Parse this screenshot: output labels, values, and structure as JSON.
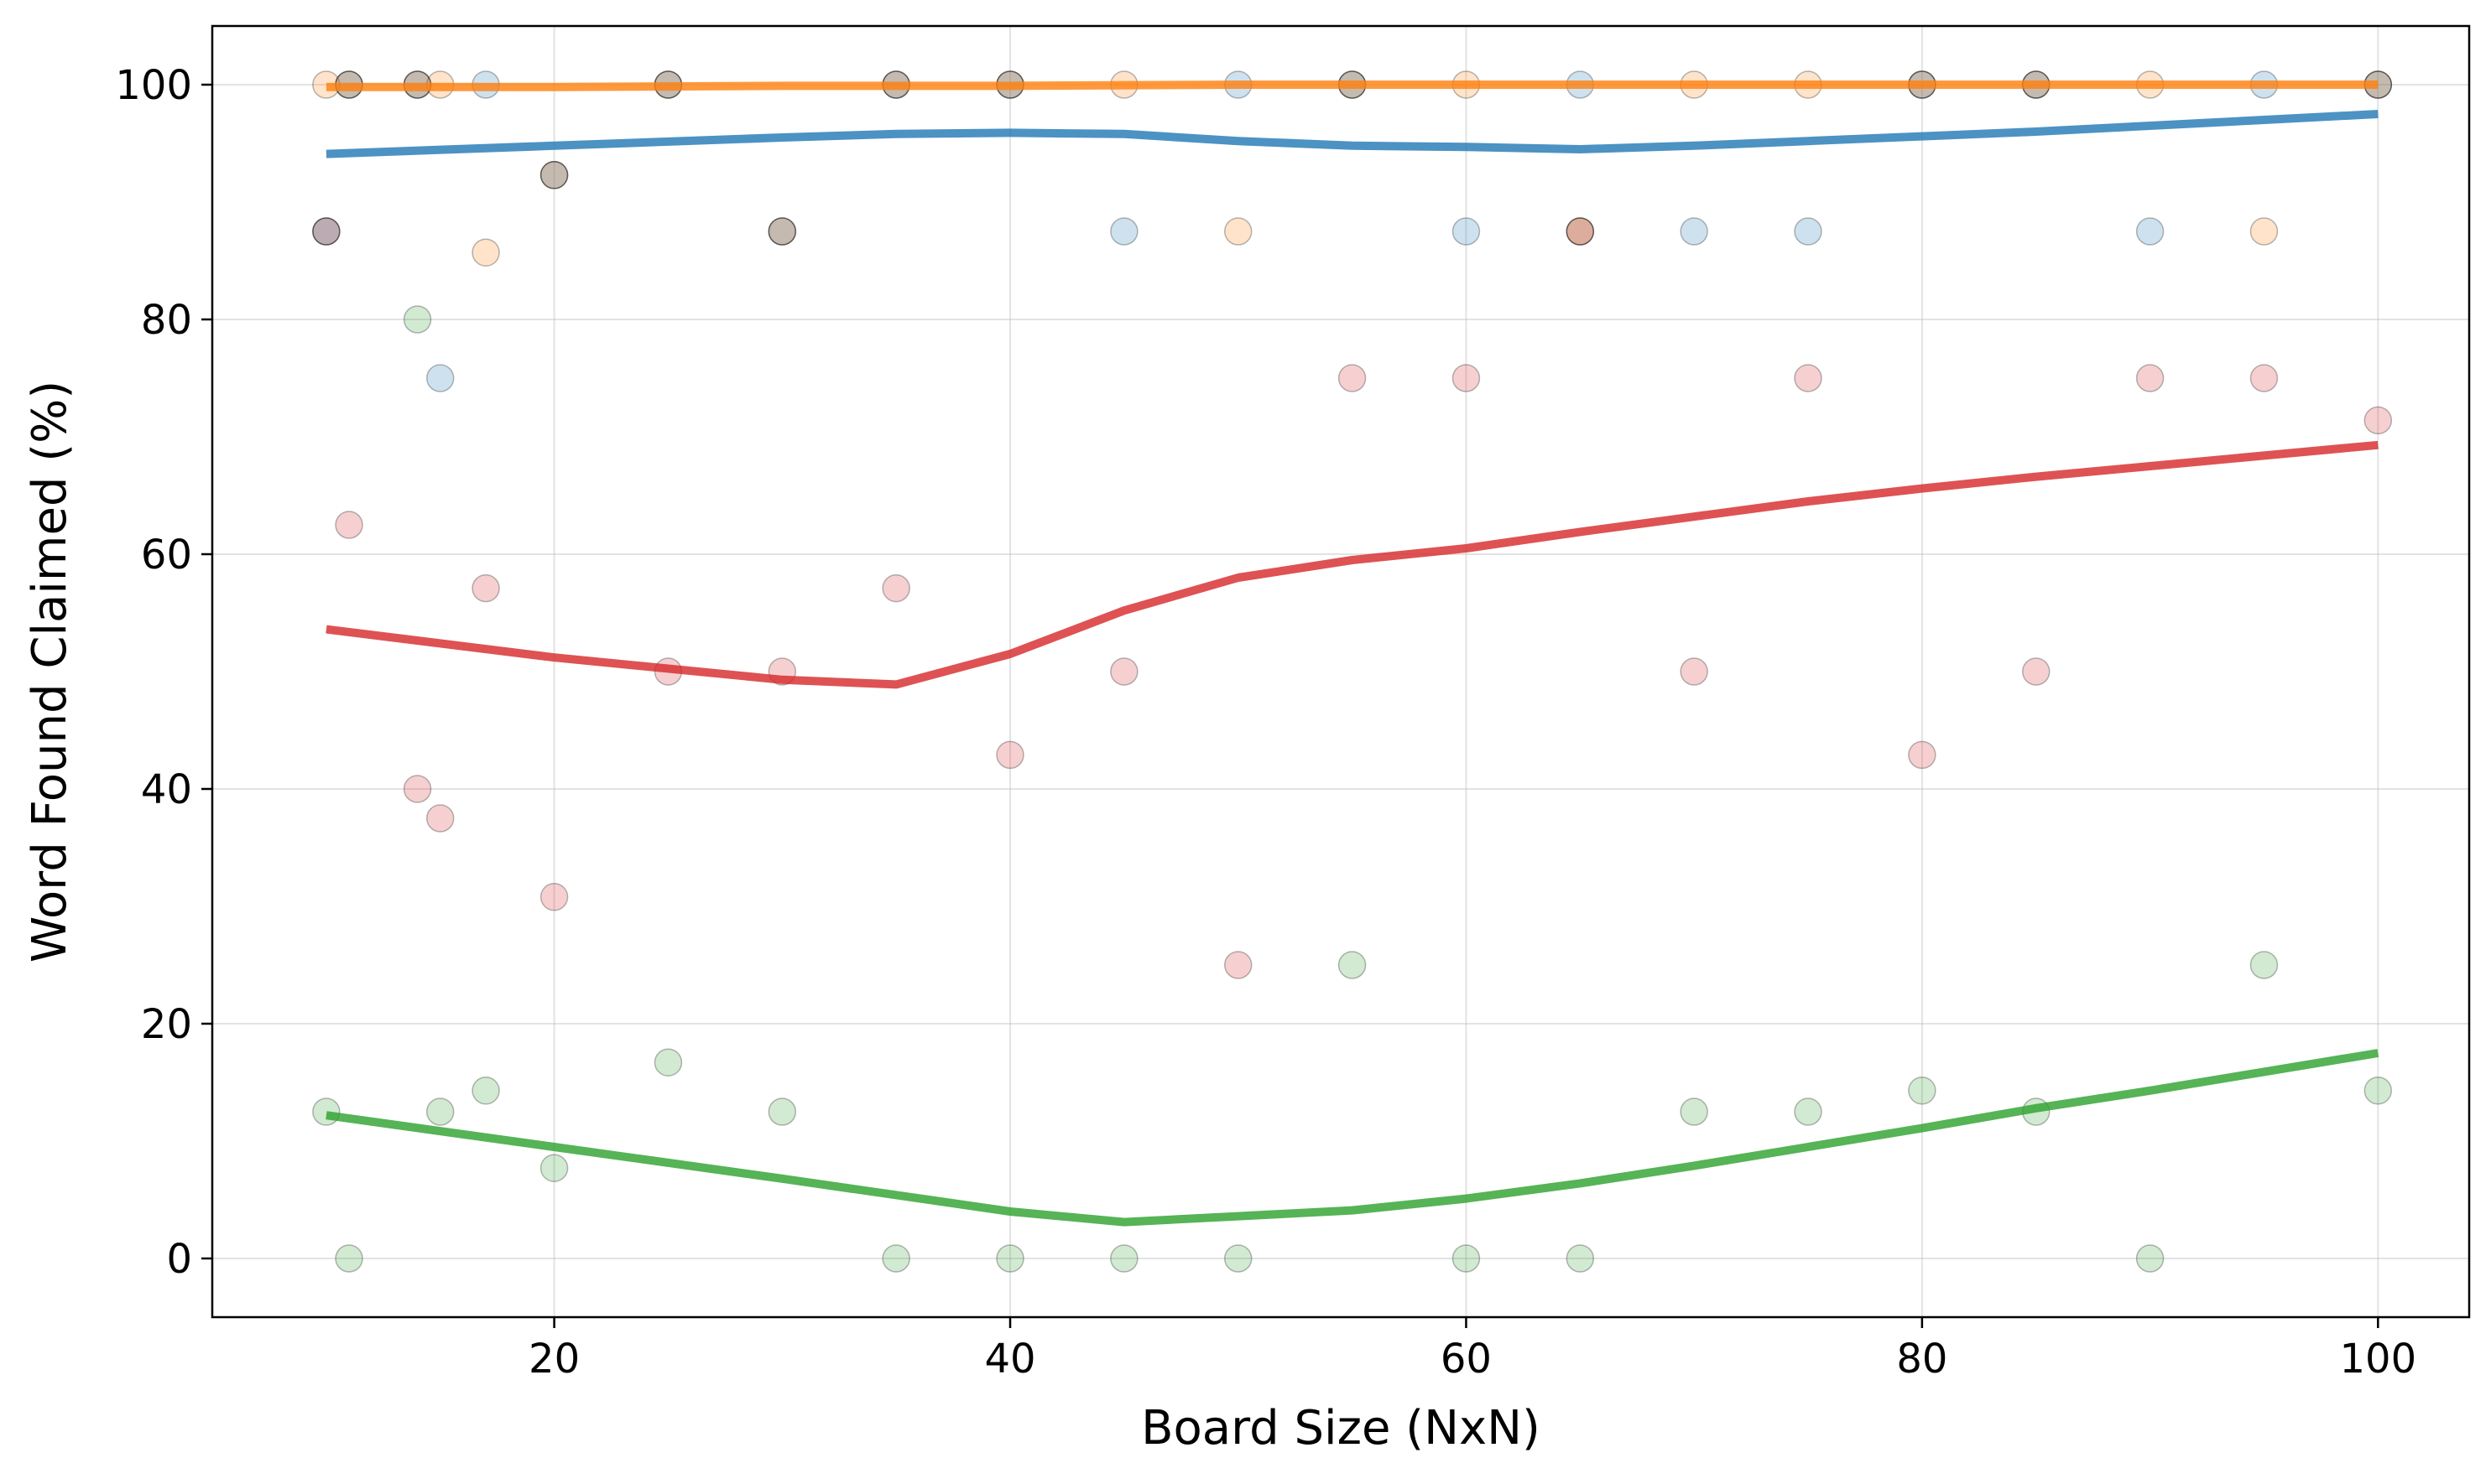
{
  "chart_data": {
    "type": "scatter",
    "title": "",
    "xlabel": "Board Size (NxN)",
    "ylabel": "Word Found Claimed (%)",
    "xlim": [
      5,
      104
    ],
    "ylim": [
      -5,
      105
    ],
    "xticks": [
      20,
      40,
      60,
      80,
      100
    ],
    "yticks": [
      0,
      20,
      40,
      60,
      80,
      100
    ],
    "grid": true,
    "legend": "none",
    "series": [
      {
        "name": "blue",
        "color": "#1f77b4",
        "points": [
          {
            "x": 10,
            "y": 87.5
          },
          {
            "x": 11,
            "y": 100
          },
          {
            "x": 14,
            "y": 100
          },
          {
            "x": 15,
            "y": 75
          },
          {
            "x": 17,
            "y": 100
          },
          {
            "x": 20,
            "y": 92.3
          },
          {
            "x": 25,
            "y": 100
          },
          {
            "x": 30,
            "y": 87.5
          },
          {
            "x": 35,
            "y": 100
          },
          {
            "x": 40,
            "y": 100
          },
          {
            "x": 45,
            "y": 87.5
          },
          {
            "x": 50,
            "y": 100
          },
          {
            "x": 55,
            "y": 100
          },
          {
            "x": 60,
            "y": 87.5
          },
          {
            "x": 65,
            "y": 100
          },
          {
            "x": 70,
            "y": 87.5
          },
          {
            "x": 75,
            "y": 87.5
          },
          {
            "x": 80,
            "y": 100
          },
          {
            "x": 85,
            "y": 100
          },
          {
            "x": 90,
            "y": 87.5
          },
          {
            "x": 95,
            "y": 100
          },
          {
            "x": 100,
            "y": 100
          }
        ],
        "trend": {
          "x": [
            10,
            20,
            30,
            35,
            40,
            45,
            50,
            55,
            60,
            65,
            70,
            75,
            80,
            85,
            90,
            95,
            100
          ],
          "y": [
            94.1,
            94.8,
            95.5,
            95.8,
            95.9,
            95.8,
            95.2,
            94.8,
            94.7,
            94.5,
            94.8,
            95.2,
            95.6,
            96.0,
            96.5,
            97.0,
            97.5
          ]
        }
      },
      {
        "name": "orange",
        "color": "#ff7f0e",
        "points": [
          {
            "x": 10,
            "y": 100
          },
          {
            "x": 11,
            "y": 100
          },
          {
            "x": 14,
            "y": 100
          },
          {
            "x": 15,
            "y": 100
          },
          {
            "x": 17,
            "y": 85.7
          },
          {
            "x": 20,
            "y": 92.3
          },
          {
            "x": 25,
            "y": 100
          },
          {
            "x": 30,
            "y": 87.5
          },
          {
            "x": 35,
            "y": 100
          },
          {
            "x": 40,
            "y": 100
          },
          {
            "x": 45,
            "y": 100
          },
          {
            "x": 50,
            "y": 87.5
          },
          {
            "x": 55,
            "y": 100
          },
          {
            "x": 60,
            "y": 100
          },
          {
            "x": 65,
            "y": 87.5
          },
          {
            "x": 70,
            "y": 100
          },
          {
            "x": 75,
            "y": 100
          },
          {
            "x": 80,
            "y": 100
          },
          {
            "x": 85,
            "y": 100
          },
          {
            "x": 90,
            "y": 100
          },
          {
            "x": 95,
            "y": 87.5
          },
          {
            "x": 100,
            "y": 100
          }
        ],
        "trend": {
          "x": [
            10,
            20,
            30,
            40,
            50,
            60,
            70,
            80,
            90,
            100
          ],
          "y": [
            99.8,
            99.8,
            99.9,
            99.9,
            100,
            100,
            100,
            100,
            100,
            100
          ]
        }
      },
      {
        "name": "red",
        "color": "#d62728",
        "points": [
          {
            "x": 10,
            "y": 87.5
          },
          {
            "x": 11,
            "y": 62.5
          },
          {
            "x": 14,
            "y": 40
          },
          {
            "x": 15,
            "y": 37.5
          },
          {
            "x": 17,
            "y": 57.1
          },
          {
            "x": 20,
            "y": 30.8
          },
          {
            "x": 25,
            "y": 50
          },
          {
            "x": 30,
            "y": 50
          },
          {
            "x": 35,
            "y": 57.1
          },
          {
            "x": 40,
            "y": 42.9
          },
          {
            "x": 45,
            "y": 50
          },
          {
            "x": 50,
            "y": 25
          },
          {
            "x": 55,
            "y": 75
          },
          {
            "x": 60,
            "y": 75
          },
          {
            "x": 65,
            "y": 87.5
          },
          {
            "x": 70,
            "y": 50
          },
          {
            "x": 75,
            "y": 75
          },
          {
            "x": 80,
            "y": 42.9
          },
          {
            "x": 85,
            "y": 50
          },
          {
            "x": 90,
            "y": 75
          },
          {
            "x": 95,
            "y": 75
          },
          {
            "x": 100,
            "y": 71.4
          }
        ],
        "trend": {
          "x": [
            10,
            20,
            30,
            35,
            40,
            45,
            50,
            55,
            60,
            65,
            70,
            75,
            80,
            85,
            90,
            95,
            100
          ],
          "y": [
            53.6,
            51.2,
            49.3,
            48.9,
            51.5,
            55.2,
            58.0,
            59.5,
            60.5,
            61.9,
            63.2,
            64.5,
            65.6,
            66.6,
            67.5,
            68.4,
            69.3
          ]
        }
      },
      {
        "name": "green",
        "color": "#2ca02c",
        "points": [
          {
            "x": 10,
            "y": 12.5
          },
          {
            "x": 11,
            "y": 0
          },
          {
            "x": 14,
            "y": 80
          },
          {
            "x": 15,
            "y": 12.5
          },
          {
            "x": 17,
            "y": 14.3
          },
          {
            "x": 20,
            "y": 7.7
          },
          {
            "x": 25,
            "y": 16.7
          },
          {
            "x": 30,
            "y": 12.5
          },
          {
            "x": 35,
            "y": 0
          },
          {
            "x": 40,
            "y": 0
          },
          {
            "x": 45,
            "y": 0
          },
          {
            "x": 50,
            "y": 0
          },
          {
            "x": 55,
            "y": 25
          },
          {
            "x": 60,
            "y": 0
          },
          {
            "x": 65,
            "y": 0
          },
          {
            "x": 70,
            "y": 12.5
          },
          {
            "x": 75,
            "y": 12.5
          },
          {
            "x": 80,
            "y": 14.3
          },
          {
            "x": 85,
            "y": 12.5
          },
          {
            "x": 90,
            "y": 0
          },
          {
            "x": 95,
            "y": 25
          },
          {
            "x": 100,
            "y": 14.3
          }
        ],
        "trend": {
          "x": [
            10,
            20,
            30,
            40,
            45,
            50,
            55,
            60,
            65,
            70,
            75,
            80,
            85,
            90,
            95,
            100
          ],
          "y": [
            12.2,
            9.5,
            6.8,
            4.0,
            3.1,
            3.6,
            4.1,
            5.1,
            6.4,
            7.9,
            9.5,
            11.1,
            12.8,
            14.3,
            15.9,
            17.5
          ]
        }
      },
      {
        "name": "gray",
        "color": "#7f7f7f",
        "points": [
          {
            "x": 10,
            "y": 87.5
          },
          {
            "x": 11,
            "y": 100
          },
          {
            "x": 14,
            "y": 100
          },
          {
            "x": 20,
            "y": 92.3
          },
          {
            "x": 25,
            "y": 100
          },
          {
            "x": 30,
            "y": 87.5
          },
          {
            "x": 35,
            "y": 100
          },
          {
            "x": 40,
            "y": 100
          },
          {
            "x": 55,
            "y": 100
          },
          {
            "x": 65,
            "y": 87.5
          },
          {
            "x": 80,
            "y": 100
          },
          {
            "x": 85,
            "y": 100
          },
          {
            "x": 100,
            "y": 100
          }
        ]
      }
    ]
  }
}
